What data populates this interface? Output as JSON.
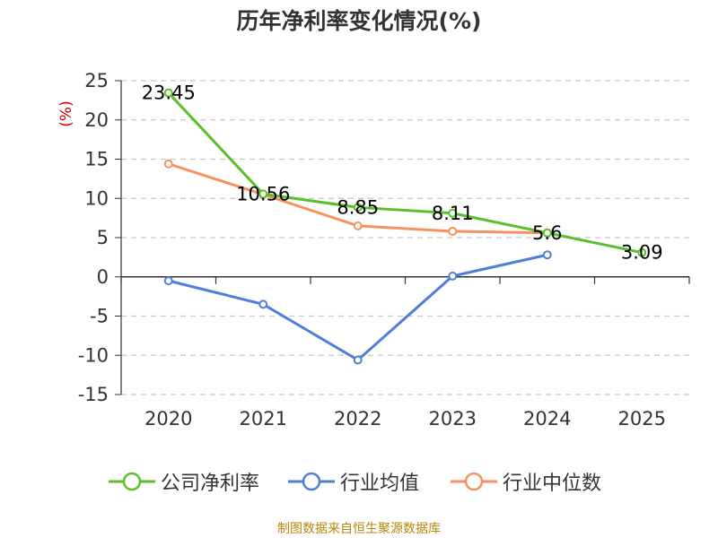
{
  "title": "历年净利率变化情况(%)",
  "source": "制图数据来自恒生聚源数据库",
  "legend": {
    "items": [
      {
        "label": "公司净利率",
        "color": "#5cbf2a"
      },
      {
        "label": "行业均值",
        "color": "#4f7ed9"
      },
      {
        "label": "行业中位数",
        "color": "#f7925c"
      }
    ]
  },
  "chart_data": {
    "type": "line",
    "title": "历年净利率变化情况(%)",
    "ylabel": "(%)",
    "xlabel": "",
    "categories": [
      "2020",
      "2021",
      "2022",
      "2023",
      "2024",
      "2025"
    ],
    "ylim": [
      -15,
      25
    ],
    "yticks": [
      -15,
      -10,
      -5,
      0,
      5,
      10,
      15,
      20,
      25
    ],
    "ytick_labels": [
      "-15",
      "-10",
      "-5",
      "0",
      "5",
      "10",
      "15",
      "20",
      "25"
    ],
    "series": [
      {
        "name": "公司净利率",
        "color": "#5cbf2a",
        "values": [
          23.45,
          10.56,
          8.85,
          8.11,
          5.6,
          3.09
        ],
        "labels": [
          "23.45",
          "10.56",
          "8.85",
          "8.11",
          "5.6",
          "3.09"
        ]
      },
      {
        "name": "行业均值",
        "color": "#4f7ed9",
        "values": [
          -0.5,
          -3.5,
          -10.6,
          0.1,
          2.8,
          null
        ]
      },
      {
        "name": "行业中位数",
        "color": "#f7925c",
        "values": [
          14.4,
          10.5,
          6.5,
          5.8,
          5.6,
          null
        ]
      }
    ],
    "grid": true,
    "legend_position": "bottom"
  }
}
